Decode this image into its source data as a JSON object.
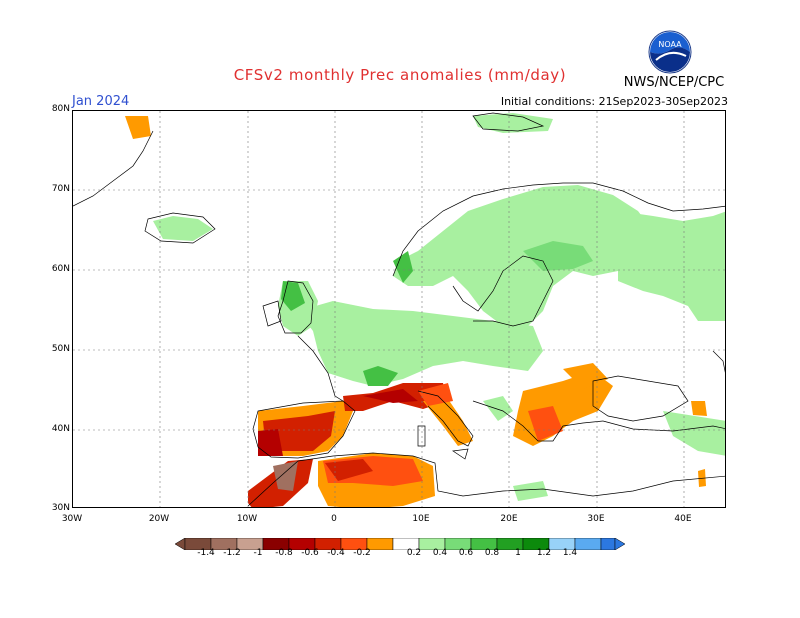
{
  "title": "CFSv2 monthly Prec anomalies (mm/day)",
  "month": "Jan 2024",
  "initial_conditions": "Initial conditions: 21Sep2023-30Sep2023",
  "agency": "NWS/NCEP/CPC",
  "logo_text": "NOAA",
  "lat_labels": [
    "80N",
    "70N",
    "60N",
    "50N",
    "40N",
    "30N"
  ],
  "lon_labels": [
    "30W",
    "20W",
    "10W",
    "0",
    "10E",
    "20E",
    "30E",
    "40E"
  ],
  "legend": {
    "colors": [
      "#7a4a3a",
      "#a07060",
      "#c8a090",
      "#8a0000",
      "#b40000",
      "#d22000",
      "#ff5010",
      "#ff9a00",
      "#ffffff",
      "#a8f0a0",
      "#78dc78",
      "#44c044",
      "#22a022",
      "#0c8a0c",
      "#98d2f8",
      "#5aaaf0",
      "#2c78e0"
    ],
    "labels": [
      "-1.4",
      "-1.2",
      "-1",
      "-0.8",
      "-0.6",
      "-0.4",
      "-0.2",
      "0.2",
      "0.4",
      "0.6",
      "0.8",
      "1",
      "1.2",
      "1.4"
    ]
  },
  "anomaly_colors": {
    "wet_light": "#a8f0a0",
    "wet_medium": "#78dc78",
    "wet_strong": "#44c044",
    "dry_light": "#ff9a00",
    "dry_medium": "#ff5010",
    "dry_strong": "#d22000",
    "dry_very_strong": "#b40000",
    "dry_extreme": "#8a0000",
    "dry_brown": "#a07060"
  }
}
